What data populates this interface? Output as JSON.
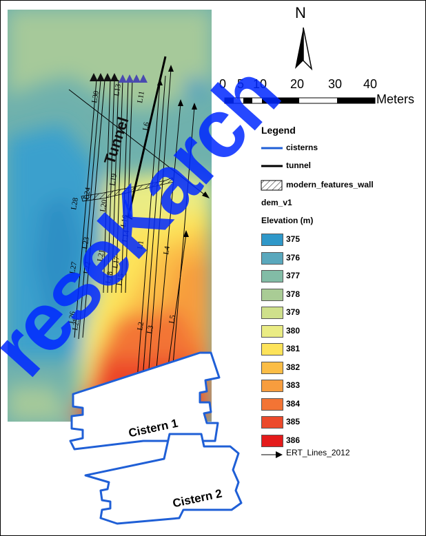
{
  "map": {
    "north_label": "N",
    "scale": {
      "ticks": [
        "0",
        "5",
        "10",
        "20",
        "30",
        "40"
      ],
      "unit": "Meters"
    },
    "tunnel_label": "Tunnel",
    "cistern1_label": "Cistern 1",
    "cistern2_label": "Cistern 2",
    "line_labels": [
      "L1",
      "L2",
      "L3",
      "L4",
      "L5",
      "L6",
      "L11",
      "L13",
      "L14",
      "L15",
      "L16",
      "L17",
      "L18",
      "L19",
      "L20",
      "L21",
      "L22",
      "L23",
      "L24",
      "L25",
      "L26",
      "L27",
      "L28",
      "L30"
    ],
    "watermark": "reseKarch"
  },
  "legend": {
    "title": "Legend",
    "items": [
      {
        "label": "cisterns",
        "color": "#1f5fd6"
      },
      {
        "label": "tunnel",
        "color": "#000000"
      },
      {
        "label": "modern_features_wall",
        "color": "#000000"
      }
    ],
    "dem_label": "dem_v1",
    "elevation_label": "Elevation (m)",
    "elevation": [
      {
        "value": "375",
        "color": "#2f98c9"
      },
      {
        "value": "376",
        "color": "#5aa8bd"
      },
      {
        "value": "377",
        "color": "#82bca6"
      },
      {
        "value": "378",
        "color": "#a9cc95"
      },
      {
        "value": "379",
        "color": "#cfe08b"
      },
      {
        "value": "380",
        "color": "#eaec84"
      },
      {
        "value": "381",
        "color": "#fde35a"
      },
      {
        "value": "382",
        "color": "#fbbd46"
      },
      {
        "value": "383",
        "color": "#f79d3e"
      },
      {
        "value": "384",
        "color": "#f37434"
      },
      {
        "value": "385",
        "color": "#ec4a2b"
      },
      {
        "value": "386",
        "color": "#e41b1b"
      }
    ],
    "ert_label": "ERT_Lines_2012"
  }
}
